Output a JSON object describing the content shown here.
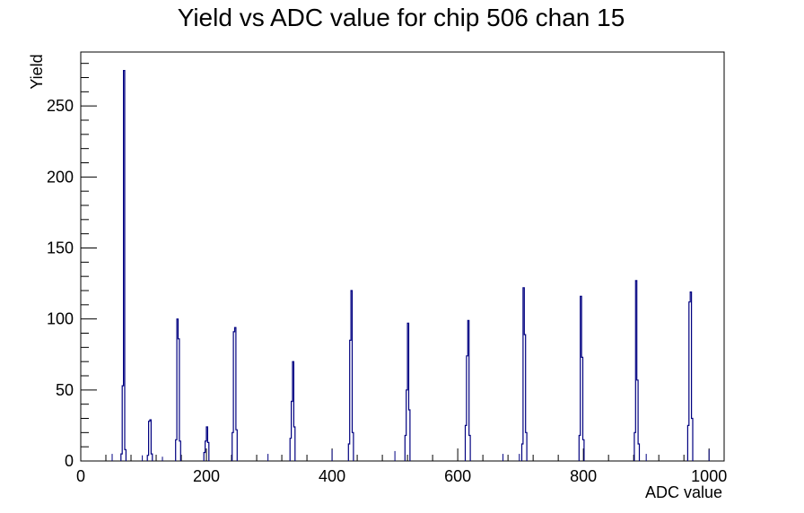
{
  "chart_data": {
    "type": "histogram",
    "title": "Yield vs ADC value for chip 506 chan 15",
    "xlabel": "ADC value",
    "ylabel": "Yield",
    "xlim": [
      0,
      1024
    ],
    "ylim": [
      0,
      288
    ],
    "xticks": [
      0,
      200,
      400,
      600,
      800,
      1000
    ],
    "yticks": [
      0,
      50,
      100,
      150,
      200,
      250
    ],
    "grid": false,
    "legend": "none",
    "line_color": "#000080",
    "peaks": [
      {
        "x": 68,
        "values": [
          5,
          53,
          275,
          8
        ]
      },
      {
        "x": 110,
        "values": [
          4,
          28,
          29,
          5
        ]
      },
      {
        "x": 155,
        "values": [
          15,
          100,
          86,
          14
        ]
      },
      {
        "x": 200,
        "values": [
          6,
          14,
          24,
          13
        ]
      },
      {
        "x": 245,
        "values": [
          20,
          91,
          94,
          22
        ]
      },
      {
        "x": 337,
        "values": [
          16,
          42,
          70,
          24
        ]
      },
      {
        "x": 430,
        "values": [
          12,
          85,
          120,
          20
        ]
      },
      {
        "x": 520,
        "values": [
          18,
          50,
          97,
          36
        ]
      },
      {
        "x": 616,
        "values": [
          25,
          74,
          99,
          18
        ]
      },
      {
        "x": 706,
        "values": [
          12,
          122,
          89,
          20
        ]
      },
      {
        "x": 797,
        "values": [
          18,
          116,
          73,
          15
        ]
      },
      {
        "x": 885,
        "values": [
          20,
          127,
          57,
          12
        ]
      },
      {
        "x": 970,
        "values": [
          25,
          112,
          119,
          30
        ]
      }
    ],
    "isolated_bins": [
      {
        "x": 50,
        "y": 5
      },
      {
        "x": 98,
        "y": 4
      },
      {
        "x": 130,
        "y": 3
      },
      {
        "x": 298,
        "y": 5
      },
      {
        "x": 400,
        "y": 8
      },
      {
        "x": 500,
        "y": 7
      },
      {
        "x": 672,
        "y": 5
      },
      {
        "x": 698,
        "y": 5
      },
      {
        "x": 900,
        "y": 5
      },
      {
        "x": 1000,
        "y": 8
      }
    ]
  }
}
